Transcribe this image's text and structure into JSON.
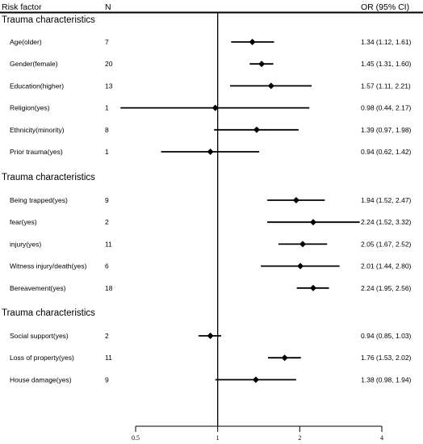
{
  "header": {
    "risk_factor": "Risk factor",
    "n": "N",
    "or_ci": "OR (95% CI)"
  },
  "chart_data": {
    "type": "forest",
    "x_scale": "log",
    "xlim": [
      0.5,
      4
    ],
    "x_ticks": [
      "0.5",
      "1",
      "2",
      "4"
    ],
    "x_tick_values": [
      0.5,
      1,
      2,
      4
    ],
    "reference_line": 1,
    "groups": [
      {
        "title": "Trauma characteristics",
        "rows": [
          {
            "label": "Age(older)",
            "n": "7",
            "or": 1.34,
            "lo": 1.12,
            "hi": 1.61,
            "text": "1.34 (1.12, 1.61)"
          },
          {
            "label": "Gender(female)",
            "n": "20",
            "or": 1.45,
            "lo": 1.31,
            "hi": 1.6,
            "text": "1.45 (1.31, 1.60)"
          },
          {
            "label": "Education(higher)",
            "n": "13",
            "or": 1.57,
            "lo": 1.11,
            "hi": 2.21,
            "text": "1.57 (1.11, 2.21)"
          },
          {
            "label": "Religion(yes)",
            "n": "1",
            "or": 0.98,
            "lo": 0.44,
            "hi": 2.17,
            "text": "0.98 (0.44, 2.17)"
          },
          {
            "label": "Ethnicity(minority)",
            "n": "8",
            "or": 1.39,
            "lo": 0.97,
            "hi": 1.98,
            "text": "1.39 (0.97, 1.98)"
          },
          {
            "label": "Prior trauma(yes)",
            "n": "1",
            "or": 0.94,
            "lo": 0.62,
            "hi": 1.42,
            "text": "0.94 (0.62, 1.42)"
          }
        ]
      },
      {
        "title": "Trauma characteristics",
        "rows": [
          {
            "label": "Being trapped(yes)",
            "n": "9",
            "or": 1.94,
            "lo": 1.52,
            "hi": 2.47,
            "text": "1.94 (1.52, 2.47)"
          },
          {
            "label": "fear(yes)",
            "n": "2",
            "or": 2.24,
            "lo": 1.52,
            "hi": 3.32,
            "text": "2.24 (1.52, 3.32)"
          },
          {
            "label": "injury(yes)",
            "n": "11",
            "or": 2.05,
            "lo": 1.67,
            "hi": 2.52,
            "text": "2.05 (1.67, 2.52)"
          },
          {
            "label": "Witness injury/death(yes)",
            "n": "6",
            "or": 2.01,
            "lo": 1.44,
            "hi": 2.8,
            "text": "2.01 (1.44, 2.80)"
          },
          {
            "label": "Bereavement(yes)",
            "n": "18",
            "or": 2.24,
            "lo": 1.95,
            "hi": 2.56,
            "text": "2.24 (1.95, 2.56)"
          }
        ]
      },
      {
        "title": "Trauma characteristics",
        "rows": [
          {
            "label": "Social support(yes)",
            "n": "2",
            "or": 0.94,
            "lo": 0.85,
            "hi": 1.03,
            "text": "0.94 (0.85, 1.03)"
          },
          {
            "label": "Loss of property(yes)",
            "n": "11",
            "or": 1.76,
            "lo": 1.53,
            "hi": 2.02,
            "text": "1.76 (1.53, 2.02)"
          },
          {
            "label": "House damage(yes)",
            "n": "9",
            "or": 1.38,
            "lo": 0.98,
            "hi": 1.94,
            "text": "1.38 (0.98, 1.94)"
          }
        ]
      }
    ]
  }
}
